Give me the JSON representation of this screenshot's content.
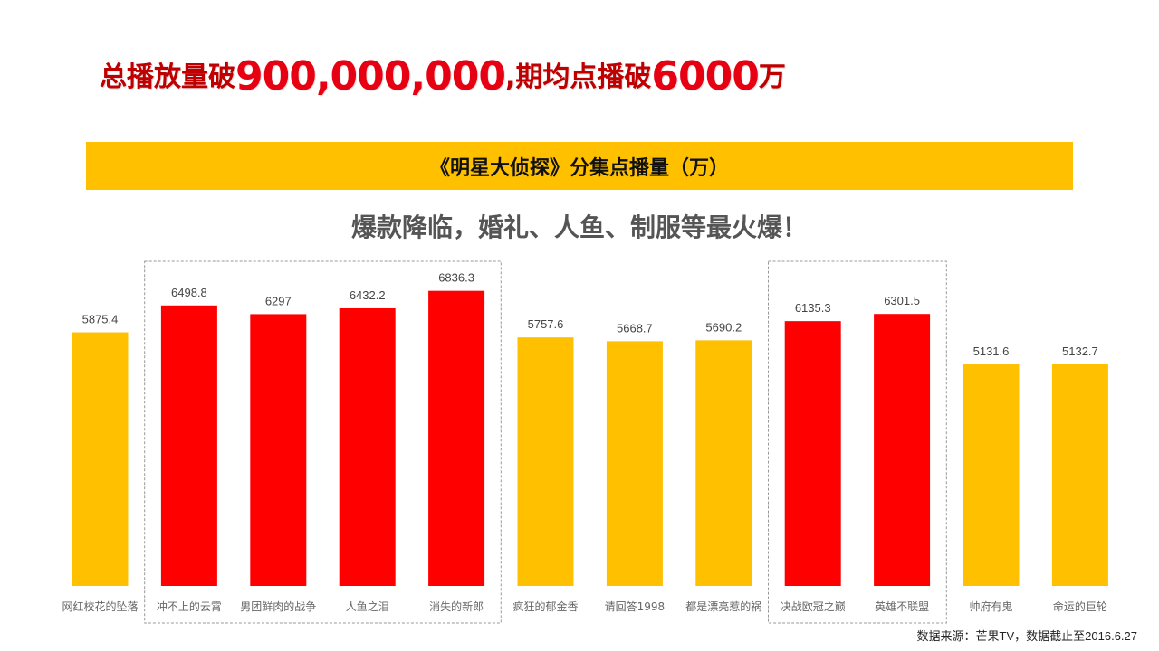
{
  "headline": {
    "part1": "总播放量破",
    "part2": "900,000,000",
    "part3": ",期均点播破",
    "part4": "6000",
    "part5": "万"
  },
  "source_note": "数据来源：芒果TV，数据截止至2016.6.27",
  "colors": {
    "normal": "#ffc000",
    "highlight": "#ff0000",
    "headline": "#c00000",
    "band": "#ffc000"
  },
  "chart_data": {
    "type": "bar",
    "title": "《明星大侦探》分集点播量（万）",
    "subtitle": "爆款降临，婚礼、人鱼、制服等最火爆！",
    "categories": [
      "网红校花的坠落",
      "冲不上的云霄",
      "男团鲜肉的战争",
      "人鱼之泪",
      "消失的新郎",
      "疯狂的郁金香",
      "请回答1998",
      "都是漂亮惹的祸",
      "决战欧冠之巅",
      "英雄不联盟",
      "帅府有鬼",
      "命运的巨轮"
    ],
    "values": [
      5875.4,
      6498.8,
      6297,
      6432.2,
      6836.3,
      5757.6,
      5668.7,
      5690.2,
      6135.3,
      6301.5,
      5131.6,
      5132.7
    ],
    "value_labels": [
      "5875.4",
      "6498.8",
      "6297",
      "6432.2",
      "6836.3",
      "5757.6",
      "5668.7",
      "5690.2",
      "6135.3",
      "6301.5",
      "5131.6",
      "5132.7"
    ],
    "highlighted": [
      false,
      true,
      true,
      true,
      true,
      false,
      false,
      false,
      true,
      true,
      false,
      false
    ],
    "highlight_groups": [
      [
        1,
        4
      ],
      [
        8,
        9
      ]
    ],
    "xlabel": "",
    "ylabel": "",
    "ylim": [
      0,
      7500
    ],
    "grid": false,
    "legend": "none"
  }
}
